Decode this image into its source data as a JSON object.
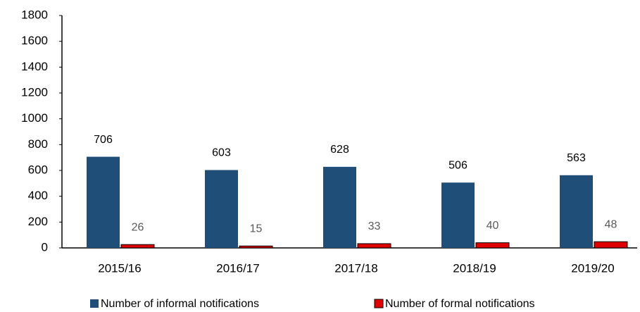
{
  "chart_data": {
    "type": "bar",
    "categories": [
      "2015/16",
      "2016/17",
      "2017/18",
      "2018/19",
      "2019/20"
    ],
    "series": [
      {
        "name": "Number of informal notifications",
        "color": "#1f4e79",
        "values": [
          706,
          603,
          628,
          506,
          563
        ]
      },
      {
        "name": "Number of formal notifications",
        "color": "#e00000",
        "values": [
          26,
          15,
          33,
          40,
          48
        ]
      }
    ],
    "ylim": [
      0,
      1800
    ],
    "yticks": [
      0,
      200,
      400,
      600,
      800,
      1000,
      1200,
      1400,
      1600,
      1800
    ],
    "grid": false,
    "legend": "bottom"
  }
}
